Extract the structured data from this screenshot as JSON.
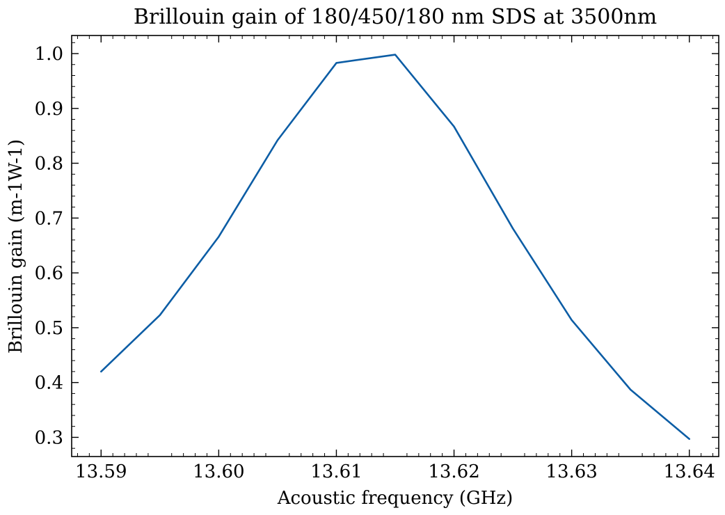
{
  "chart_data": {
    "type": "line",
    "title": "Brillouin gain of 180/450/180 nm SDS at 3500nm",
    "xlabel": "Acoustic frequency (GHz)",
    "ylabel": "Brillouin gain (m-1W-1)",
    "xlim": [
      13.5875,
      13.6425
    ],
    "ylim": [
      0.265,
      1.033
    ],
    "xticks": [
      13.59,
      13.6,
      13.61,
      13.62,
      13.63,
      13.64
    ],
    "xtick_labels": [
      "13.59",
      "13.60",
      "13.61",
      "13.62",
      "13.63",
      "13.64"
    ],
    "yticks": [
      0.3,
      0.4,
      0.5,
      0.6,
      0.7,
      0.8,
      0.9,
      1.0
    ],
    "ytick_labels": [
      "0.3",
      "0.4",
      "0.5",
      "0.6",
      "0.7",
      "0.8",
      "0.9",
      "1.0"
    ],
    "grid": false,
    "series": [
      {
        "color": "#0C5DA5",
        "x": [
          13.59,
          13.595,
          13.6,
          13.605,
          13.61,
          13.615,
          13.62,
          13.625,
          13.63,
          13.635,
          13.64
        ],
        "y": [
          0.42,
          0.523,
          0.666,
          0.842,
          0.983,
          0.998,
          0.867,
          0.681,
          0.514,
          0.387,
          0.297
        ]
      }
    ]
  }
}
